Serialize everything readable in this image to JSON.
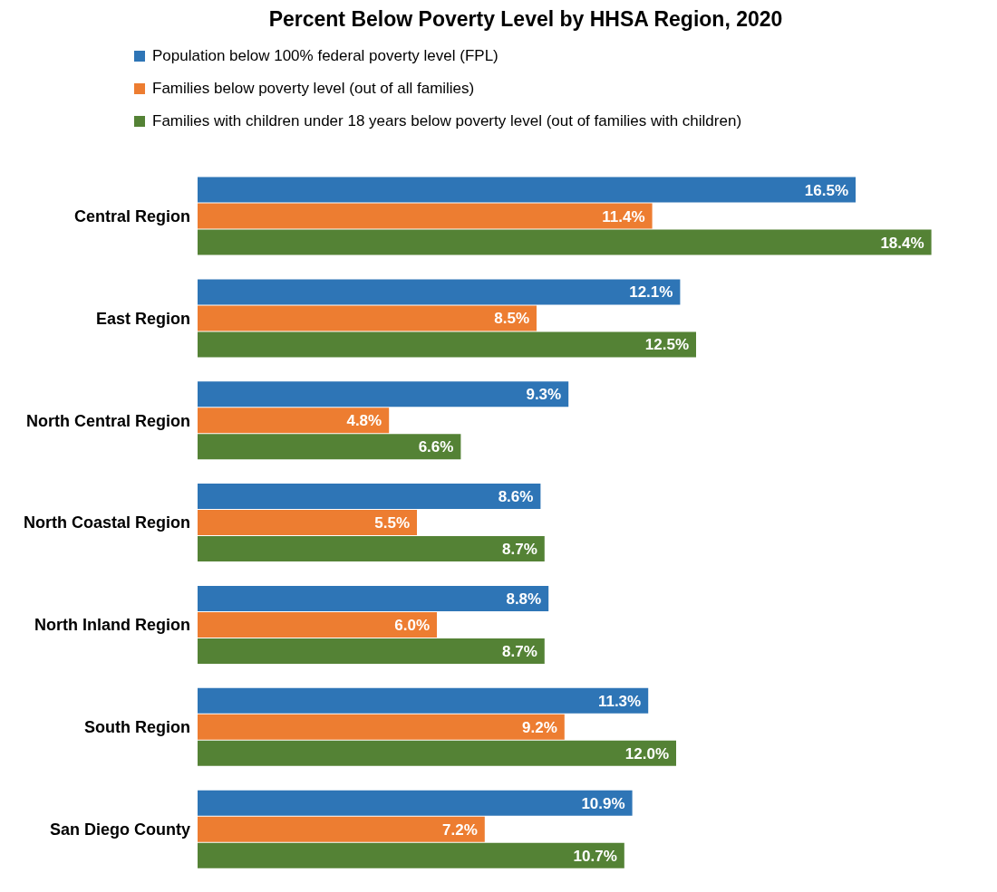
{
  "chart_data": {
    "type": "bar",
    "orientation": "horizontal",
    "title": "Percent Below Poverty Level by HHSA Region, 2020",
    "categories": [
      "Central Region",
      "East Region",
      "North Central Region",
      "North Coastal Region",
      "North Inland Region",
      "South Region",
      "San Diego County"
    ],
    "series": [
      {
        "name": "Population below 100% federal poverty level (FPL)",
        "color": "#2e75b6",
        "values": [
          16.5,
          12.1,
          9.3,
          8.6,
          8.8,
          11.3,
          10.9
        ],
        "value_labels": [
          "16.5%",
          "12.1%",
          "9.3%",
          "8.6%",
          "8.8%",
          "11.3%",
          "10.9%"
        ]
      },
      {
        "name": "Families below poverty level (out of all families)",
        "color": "#ed7d31",
        "values": [
          11.4,
          8.5,
          4.8,
          5.5,
          6.0,
          9.2,
          7.2
        ],
        "value_labels": [
          "11.4%",
          "8.5%",
          "4.8%",
          "5.5%",
          "6.0%",
          "9.2%",
          "7.2%"
        ]
      },
      {
        "name": "Families with children under 18 years below poverty level (out of families with children)",
        "color": "#548235",
        "values": [
          18.4,
          12.5,
          6.6,
          8.7,
          8.7,
          12.0,
          10.7
        ],
        "value_labels": [
          "18.4%",
          "12.5%",
          "6.6%",
          "8.7%",
          "8.7%",
          "12.0%",
          "10.7%"
        ]
      }
    ],
    "xlim": [
      0,
      18.5
    ],
    "tick_labels": "y",
    "legend": "top"
  }
}
